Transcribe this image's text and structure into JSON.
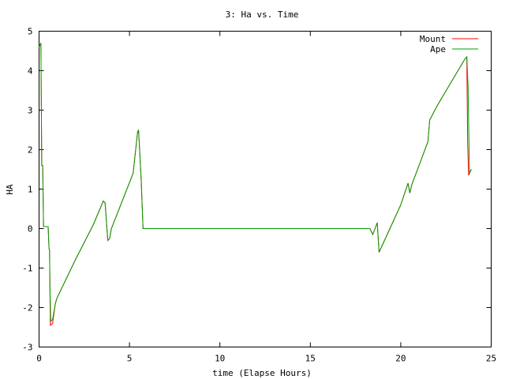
{
  "chart_data": {
    "type": "line",
    "title": "3: Ha vs. Time",
    "xlabel": "time (Elapse Hours)",
    "ylabel": "HA",
    "xlim": [
      0,
      25
    ],
    "ylim": [
      -3,
      5
    ],
    "xticks": [
      0,
      5,
      10,
      15,
      20,
      25
    ],
    "yticks": [
      -3,
      -2,
      -1,
      0,
      1,
      2,
      3,
      4,
      5
    ],
    "grid": false,
    "legend_position": "top-right",
    "series": [
      {
        "name": "Mount",
        "color": "#ff0000",
        "points": [
          [
            0,
            4.6
          ],
          [
            0.1,
            4.7
          ],
          [
            0.15,
            1.6
          ],
          [
            0.2,
            1.6
          ],
          [
            0.25,
            0.05
          ],
          [
            0.5,
            0.05
          ],
          [
            0.55,
            -0.5
          ],
          [
            0.58,
            -0.55
          ],
          [
            0.6,
            -1.55
          ],
          [
            0.63,
            -2.45
          ],
          [
            0.75,
            -2.4
          ],
          [
            0.9,
            -1.9
          ],
          [
            1.0,
            -1.75
          ],
          [
            2.0,
            -0.8
          ],
          [
            3.0,
            0.1
          ],
          [
            3.55,
            0.7
          ],
          [
            3.65,
            0.65
          ],
          [
            3.8,
            -0.3
          ],
          [
            3.9,
            -0.25
          ],
          [
            4.0,
            0.0
          ],
          [
            5.2,
            1.4
          ],
          [
            5.45,
            2.45
          ],
          [
            5.5,
            2.5
          ],
          [
            5.65,
            1.2
          ],
          [
            5.75,
            0.0
          ],
          [
            18.3,
            0.0
          ],
          [
            18.45,
            -0.15
          ],
          [
            18.7,
            0.15
          ],
          [
            18.8,
            -0.6
          ],
          [
            19.0,
            -0.4
          ],
          [
            20.0,
            0.6
          ],
          [
            20.4,
            1.15
          ],
          [
            20.5,
            0.9
          ],
          [
            20.6,
            1.1
          ],
          [
            21.5,
            2.2
          ],
          [
            21.6,
            2.75
          ],
          [
            22.0,
            3.1
          ],
          [
            23.55,
            4.3
          ],
          [
            23.65,
            4.35
          ],
          [
            23.7,
            2.15
          ],
          [
            23.75,
            1.35
          ],
          [
            23.9,
            1.5
          ]
        ]
      },
      {
        "name": "Ape",
        "color": "#00a000",
        "points": [
          [
            0,
            4.6
          ],
          [
            0.1,
            4.7
          ],
          [
            0.15,
            1.6
          ],
          [
            0.2,
            1.6
          ],
          [
            0.25,
            0.05
          ],
          [
            0.5,
            0.05
          ],
          [
            0.55,
            -0.5
          ],
          [
            0.58,
            -0.55
          ],
          [
            0.6,
            -1.5
          ],
          [
            0.65,
            -2.35
          ],
          [
            0.75,
            -2.3
          ],
          [
            0.9,
            -1.9
          ],
          [
            1.0,
            -1.75
          ],
          [
            2.0,
            -0.8
          ],
          [
            3.0,
            0.1
          ],
          [
            3.55,
            0.7
          ],
          [
            3.65,
            0.65
          ],
          [
            3.8,
            -0.3
          ],
          [
            3.9,
            -0.25
          ],
          [
            4.0,
            0.0
          ],
          [
            5.2,
            1.4
          ],
          [
            5.45,
            2.45
          ],
          [
            5.5,
            2.5
          ],
          [
            5.65,
            1.2
          ],
          [
            5.75,
            0.0
          ],
          [
            18.3,
            0.0
          ],
          [
            18.45,
            -0.15
          ],
          [
            18.7,
            0.15
          ],
          [
            18.8,
            -0.6
          ],
          [
            19.0,
            -0.4
          ],
          [
            20.0,
            0.6
          ],
          [
            20.4,
            1.15
          ],
          [
            20.5,
            0.9
          ],
          [
            20.6,
            1.1
          ],
          [
            21.5,
            2.2
          ],
          [
            21.6,
            2.75
          ],
          [
            22.0,
            3.1
          ],
          [
            23.55,
            4.3
          ],
          [
            23.65,
            4.35
          ],
          [
            23.72,
            3.6
          ],
          [
            23.8,
            1.4
          ],
          [
            23.9,
            1.5
          ]
        ]
      }
    ]
  }
}
